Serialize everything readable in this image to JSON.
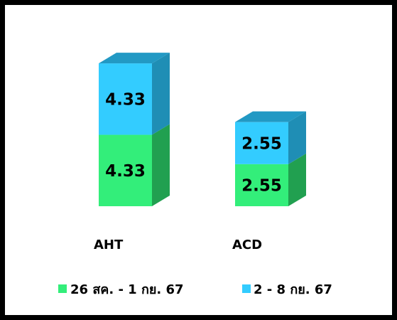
{
  "chart_data": {
    "type": "bar",
    "stacked": true,
    "style": "3d",
    "categories": [
      "AHT",
      "ACD"
    ],
    "series": [
      {
        "name": "26 สค. - 1 กย. 67",
        "values": [
          4.33,
          2.55
        ],
        "color": "#33EE7A",
        "side_color": "#21A050",
        "top_color": "#21A050"
      },
      {
        "name": "2 - 8 กย. 67",
        "values": [
          4.33,
          2.55
        ],
        "color": "#33CCFF",
        "side_color": "#1F8EB5",
        "top_color": "#2299C4"
      }
    ],
    "legend": "bottom",
    "grid": false
  }
}
